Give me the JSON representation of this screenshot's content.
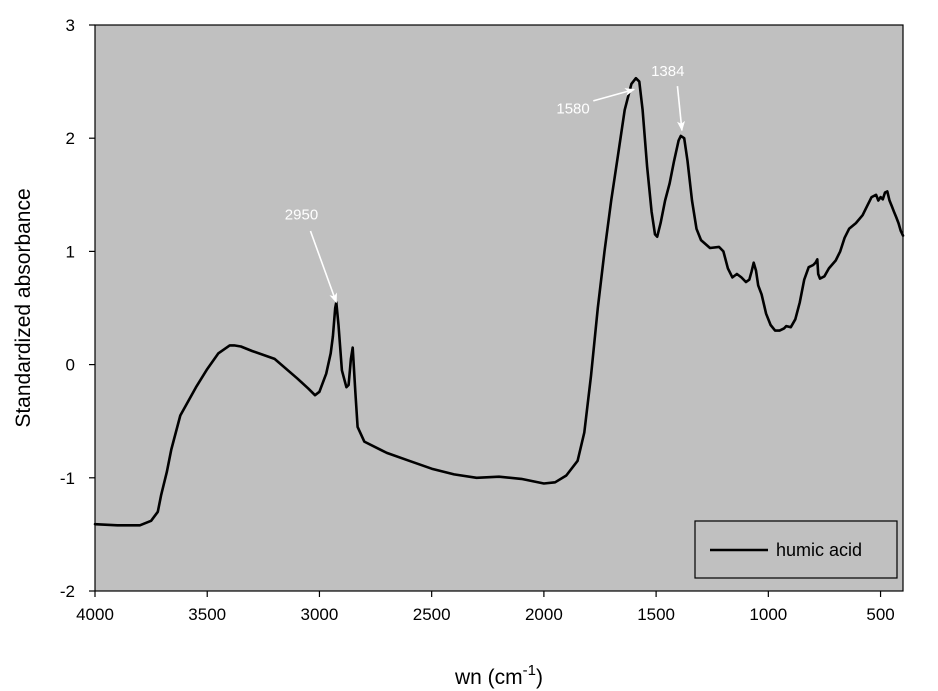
{
  "chart_data": {
    "type": "line",
    "title": "",
    "xlabel": "wn (cm",
    "xlabel_sup": "-1",
    "xlabel_close": ")",
    "ylabel": "Standardized absorbance",
    "xlim": [
      4000,
      400
    ],
    "ylim": [
      -2,
      3
    ],
    "x_reversed": true,
    "x_ticks": [
      "4000",
      "3500",
      "3000",
      "2500",
      "2000",
      "1500",
      "1000",
      "500"
    ],
    "y_ticks": [
      "-2",
      "-1",
      "0",
      "1",
      "2",
      "3"
    ],
    "grid": false,
    "plot_background": "#c0c0c0",
    "line_color": "#000000",
    "legend": {
      "position": "bottom-right",
      "entries": [
        "humic acid"
      ]
    },
    "series": [
      {
        "name": "humic acid",
        "points": [
          [
            4000,
            -1.41
          ],
          [
            3900,
            -1.42
          ],
          [
            3800,
            -1.42
          ],
          [
            3750,
            -1.38
          ],
          [
            3720,
            -1.3
          ],
          [
            3705,
            -1.15
          ],
          [
            3700,
            -1.11
          ],
          [
            3680,
            -0.95
          ],
          [
            3660,
            -0.75
          ],
          [
            3620,
            -0.45
          ],
          [
            3550,
            -0.2
          ],
          [
            3500,
            -0.04
          ],
          [
            3450,
            0.1
          ],
          [
            3400,
            0.17
          ],
          [
            3380,
            0.17
          ],
          [
            3350,
            0.16
          ],
          [
            3300,
            0.12
          ],
          [
            3200,
            0.05
          ],
          [
            3100,
            -0.12
          ],
          [
            3050,
            -0.21
          ],
          [
            3020,
            -0.27
          ],
          [
            3000,
            -0.24
          ],
          [
            2970,
            -0.08
          ],
          [
            2950,
            0.1
          ],
          [
            2940,
            0.25
          ],
          [
            2930,
            0.5
          ],
          [
            2925,
            0.55
          ],
          [
            2915,
            0.35
          ],
          [
            2900,
            -0.05
          ],
          [
            2880,
            -0.2
          ],
          [
            2870,
            -0.18
          ],
          [
            2860,
            0.05
          ],
          [
            2852,
            0.15
          ],
          [
            2840,
            -0.25
          ],
          [
            2830,
            -0.55
          ],
          [
            2800,
            -0.68
          ],
          [
            2700,
            -0.78
          ],
          [
            2600,
            -0.85
          ],
          [
            2500,
            -0.92
          ],
          [
            2400,
            -0.97
          ],
          [
            2300,
            -1.0
          ],
          [
            2200,
            -0.99
          ],
          [
            2100,
            -1.01
          ],
          [
            2000,
            -1.05
          ],
          [
            1950,
            -1.04
          ],
          [
            1900,
            -0.98
          ],
          [
            1850,
            -0.85
          ],
          [
            1820,
            -0.6
          ],
          [
            1790,
            -0.1
          ],
          [
            1760,
            0.5
          ],
          [
            1730,
            1.0
          ],
          [
            1700,
            1.45
          ],
          [
            1670,
            1.85
          ],
          [
            1640,
            2.25
          ],
          [
            1610,
            2.48
          ],
          [
            1590,
            2.53
          ],
          [
            1575,
            2.5
          ],
          [
            1560,
            2.25
          ],
          [
            1540,
            1.75
          ],
          [
            1520,
            1.35
          ],
          [
            1505,
            1.15
          ],
          [
            1495,
            1.13
          ],
          [
            1480,
            1.25
          ],
          [
            1460,
            1.45
          ],
          [
            1440,
            1.6
          ],
          [
            1420,
            1.8
          ],
          [
            1400,
            1.98
          ],
          [
            1390,
            2.02
          ],
          [
            1375,
            2.0
          ],
          [
            1360,
            1.8
          ],
          [
            1340,
            1.45
          ],
          [
            1320,
            1.2
          ],
          [
            1300,
            1.1
          ],
          [
            1260,
            1.03
          ],
          [
            1220,
            1.04
          ],
          [
            1200,
            1.0
          ],
          [
            1180,
            0.85
          ],
          [
            1160,
            0.77
          ],
          [
            1140,
            0.8
          ],
          [
            1120,
            0.77
          ],
          [
            1100,
            0.73
          ],
          [
            1085,
            0.75
          ],
          [
            1075,
            0.82
          ],
          [
            1065,
            0.9
          ],
          [
            1055,
            0.83
          ],
          [
            1045,
            0.7
          ],
          [
            1030,
            0.62
          ],
          [
            1010,
            0.45
          ],
          [
            990,
            0.35
          ],
          [
            970,
            0.3
          ],
          [
            950,
            0.3
          ],
          [
            930,
            0.32
          ],
          [
            920,
            0.34
          ],
          [
            900,
            0.33
          ],
          [
            880,
            0.4
          ],
          [
            860,
            0.55
          ],
          [
            840,
            0.75
          ],
          [
            820,
            0.86
          ],
          [
            800,
            0.88
          ],
          [
            790,
            0.9
          ],
          [
            782,
            0.93
          ],
          [
            778,
            0.8
          ],
          [
            770,
            0.76
          ],
          [
            750,
            0.78
          ],
          [
            730,
            0.85
          ],
          [
            700,
            0.92
          ],
          [
            680,
            1.0
          ],
          [
            660,
            1.12
          ],
          [
            640,
            1.2
          ],
          [
            610,
            1.25
          ],
          [
            580,
            1.32
          ],
          [
            560,
            1.4
          ],
          [
            540,
            1.48
          ],
          [
            520,
            1.5
          ],
          [
            510,
            1.45
          ],
          [
            500,
            1.48
          ],
          [
            490,
            1.46
          ],
          [
            480,
            1.52
          ],
          [
            470,
            1.53
          ],
          [
            460,
            1.45
          ],
          [
            450,
            1.4
          ],
          [
            440,
            1.35
          ],
          [
            430,
            1.3
          ],
          [
            420,
            1.25
          ],
          [
            410,
            1.18
          ],
          [
            400,
            1.14
          ]
        ]
      }
    ],
    "annotations": [
      {
        "text": "2950",
        "text_x": 3080,
        "text_y": 1.28,
        "arrow_from": [
          3040,
          1.18
        ],
        "arrow_to": [
          2925,
          0.55
        ]
      },
      {
        "text": "1580",
        "text_x": 1870,
        "text_y": 2.22,
        "arrow_from": [
          1780,
          2.33
        ],
        "arrow_to": [
          1598,
          2.43
        ]
      },
      {
        "text": "1384",
        "text_x": 1448,
        "text_y": 2.55,
        "arrow_from": [
          1405,
          2.46
        ],
        "arrow_to": [
          1385,
          2.07
        ]
      }
    ]
  }
}
